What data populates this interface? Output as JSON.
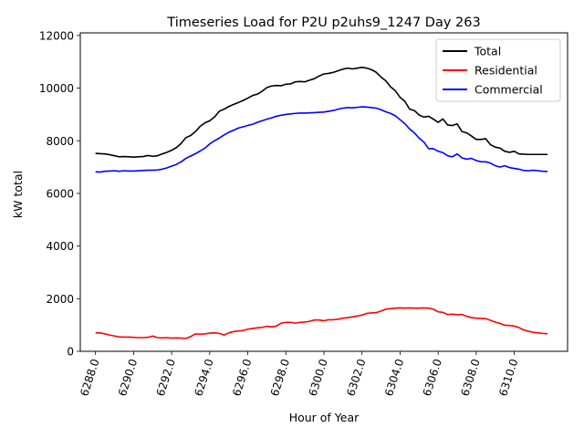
{
  "chart_data": {
    "type": "line",
    "title": "Timeseries Load for P2U p2uhs9_1247  Day 263",
    "xlabel": "Hour of Year",
    "ylabel": "kW total",
    "xlim": [
      6287.2,
      6312.8
    ],
    "ylim": [
      0,
      12100
    ],
    "xticks": [
      "6288.0",
      "6290.0",
      "6292.0",
      "6294.0",
      "6296.0",
      "6298.0",
      "6300.0",
      "6302.0",
      "6304.0",
      "6306.0",
      "6308.0",
      "6310.0"
    ],
    "xtick_values": [
      6288,
      6290,
      6292,
      6294,
      6296,
      6298,
      6300,
      6302,
      6304,
      6306,
      6308,
      6310
    ],
    "yticks": [
      "0",
      "2000",
      "4000",
      "6000",
      "8000",
      "10000",
      "12000"
    ],
    "ytick_values": [
      0,
      2000,
      4000,
      6000,
      8000,
      10000,
      12000
    ],
    "grid": false,
    "legend_position": "top-right",
    "x": [
      6288.0,
      6288.25,
      6288.5,
      6288.75,
      6289.0,
      6289.25,
      6289.5,
      6289.75,
      6290.0,
      6290.25,
      6290.5,
      6290.75,
      6291.0,
      6291.25,
      6291.5,
      6291.75,
      6292.0,
      6292.25,
      6292.5,
      6292.75,
      6293.0,
      6293.25,
      6293.5,
      6293.75,
      6294.0,
      6294.25,
      6294.5,
      6294.75,
      6295.0,
      6295.25,
      6295.5,
      6295.75,
      6296.0,
      6296.25,
      6296.5,
      6296.75,
      6297.0,
      6297.25,
      6297.5,
      6297.75,
      6298.0,
      6298.25,
      6298.5,
      6298.75,
      6299.0,
      6299.25,
      6299.5,
      6299.75,
      6300.0,
      6300.25,
      6300.5,
      6300.75,
      6301.0,
      6301.25,
      6301.5,
      6301.75,
      6302.0,
      6302.25,
      6302.5,
      6302.75,
      6303.0,
      6303.25,
      6303.5,
      6303.75,
      6304.0,
      6304.25,
      6304.5,
      6304.75,
      6305.0,
      6305.25,
      6305.5,
      6305.75,
      6306.0,
      6306.25,
      6306.5,
      6306.75,
      6307.0,
      6307.25,
      6307.5,
      6307.75,
      6308.0,
      6308.25,
      6308.5,
      6308.75,
      6309.0,
      6309.25,
      6309.5,
      6309.75,
      6310.0,
      6310.25,
      6310.5,
      6310.75,
      6311.0,
      6311.25,
      6311.5,
      6311.75
    ],
    "series": [
      {
        "name": "Total",
        "color": "#000000",
        "values": [
          7520,
          7510,
          7500,
          7470,
          7430,
          7390,
          7400,
          7390,
          7380,
          7390,
          7400,
          7440,
          7410,
          7430,
          7500,
          7560,
          7640,
          7740,
          7900,
          8120,
          8200,
          8350,
          8550,
          8680,
          8760,
          8900,
          9120,
          9200,
          9300,
          9380,
          9450,
          9530,
          9620,
          9720,
          9770,
          9880,
          10020,
          10080,
          10100,
          10090,
          10150,
          10160,
          10240,
          10250,
          10240,
          10300,
          10360,
          10460,
          10540,
          10560,
          10600,
          10660,
          10720,
          10760,
          10730,
          10760,
          10790,
          10760,
          10700,
          10600,
          10420,
          10280,
          10050,
          9900,
          9650,
          9500,
          9200,
          9150,
          8980,
          8900,
          8930,
          8820,
          8700,
          8830,
          8600,
          8580,
          8640,
          8350,
          8300,
          8180,
          8050,
          8050,
          8080,
          7850,
          7760,
          7720,
          7600,
          7560,
          7600,
          7500,
          7490,
          7480,
          7480,
          7480,
          7480,
          7480
        ]
      },
      {
        "name": "Residential",
        "color": "#ff0000",
        "values": [
          700,
          700,
          660,
          620,
          580,
          550,
          540,
          540,
          530,
          520,
          520,
          530,
          580,
          520,
          510,
          520,
          500,
          510,
          500,
          490,
          560,
          660,
          650,
          660,
          690,
          700,
          680,
          620,
          700,
          750,
          770,
          790,
          840,
          870,
          890,
          910,
          950,
          930,
          960,
          1070,
          1100,
          1100,
          1070,
          1100,
          1110,
          1140,
          1190,
          1190,
          1160,
          1200,
          1200,
          1220,
          1260,
          1280,
          1310,
          1340,
          1380,
          1440,
          1460,
          1470,
          1530,
          1600,
          1620,
          1640,
          1650,
          1640,
          1650,
          1640,
          1640,
          1650,
          1640,
          1600,
          1500,
          1480,
          1400,
          1410,
          1390,
          1400,
          1330,
          1280,
          1260,
          1250,
          1240,
          1180,
          1110,
          1060,
          990,
          980,
          960,
          900,
          810,
          760,
          720,
          700,
          680,
          670
        ]
      },
      {
        "name": "Commercial",
        "color": "#0000ff",
        "values": [
          6820,
          6810,
          6840,
          6850,
          6860,
          6840,
          6860,
          6850,
          6850,
          6860,
          6870,
          6880,
          6880,
          6890,
          6920,
          6970,
          7040,
          7100,
          7200,
          7330,
          7420,
          7510,
          7610,
          7720,
          7880,
          8000,
          8100,
          8220,
          8320,
          8400,
          8480,
          8530,
          8580,
          8630,
          8700,
          8760,
          8820,
          8870,
          8930,
          8970,
          9000,
          9020,
          9040,
          9050,
          9050,
          9060,
          9070,
          9080,
          9090,
          9120,
          9150,
          9200,
          9240,
          9260,
          9250,
          9270,
          9290,
          9280,
          9260,
          9240,
          9180,
          9100,
          9040,
          8950,
          8800,
          8650,
          8450,
          8300,
          8100,
          7950,
          7700,
          7700,
          7600,
          7550,
          7430,
          7390,
          7500,
          7350,
          7300,
          7330,
          7250,
          7200,
          7200,
          7150,
          7050,
          7000,
          7050,
          6980,
          6950,
          6920,
          6870,
          6860,
          6880,
          6860,
          6840,
          6830
        ]
      }
    ]
  }
}
